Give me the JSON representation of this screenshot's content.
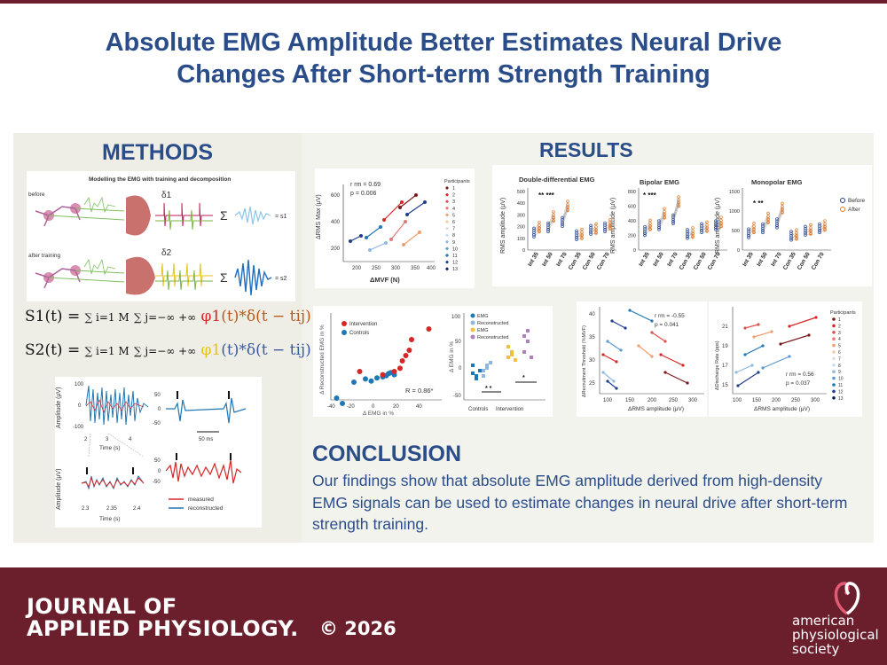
{
  "title": {
    "line1": "Absolute EMG Amplitude Better Estimates Neural Drive",
    "line2": "Changes After Short-term Strength Training"
  },
  "methods": {
    "heading": "METHODS",
    "model_title": "Modelling the EMG with training and decomposition",
    "label_before": "before",
    "label_after": "after training",
    "delta1": "δ1",
    "delta2": "δ2",
    "sum_symbol": "Σ",
    "s1": "= s1",
    "s2": "= s2",
    "eq1_lhs": "S1(t) = ",
    "eq1_sum1": "∑ i=1 M",
    "eq1_sum2": "∑ j=−∞ +∞",
    "eq1_phi": "φ1",
    "eq1_rest": "(t)*δ(t − tij)",
    "eq2_lhs": "S2(t) = ",
    "eq2_sum1": "∑ i=1 M",
    "eq2_sum2": "∑ j=−∞ +∞",
    "eq2_phi": "φ1",
    "eq2_rest": "(t)*δ(t − tij)",
    "trace_ylabel": "Amplitude (μV)",
    "trace_xlabel1": "Time (s)",
    "trace_xlabel2": "Time (s)",
    "trace_ticks_x1": [
      "2",
      "3",
      "4"
    ],
    "trace_ticks_x2": [
      "2.3",
      "2.35",
      "2.4"
    ],
    "trace_ticks_y": [
      "100",
      "0",
      "-100"
    ],
    "trace_ticks_y2": [
      "50",
      "0",
      "-50"
    ],
    "scale_bar": "50 ms",
    "legend_measured": "measured",
    "legend_reconstructed": "reconstructed"
  },
  "results": {
    "heading": "RESULTS",
    "scatter1": {
      "r": "r rm = 0.69",
      "p": "p = 0.006",
      "ylabel": "ΔRMS Max (μV)",
      "xlabel": "ΔMVF (N)",
      "xticks": [
        "200",
        "250",
        "300",
        "350",
        "400"
      ],
      "yticks": [
        "600",
        "400",
        "200"
      ],
      "legend_title": "Participants",
      "participants": [
        "1",
        "2",
        "3",
        "4",
        "5",
        "6",
        "7",
        "8",
        "9",
        "10",
        "11",
        "12",
        "13"
      ]
    },
    "bars": {
      "titles": [
        "Double-differential EMG",
        "Bipolar EMG",
        "Monopolar EMG"
      ],
      "ylabel": "RMS amplitude (μV)",
      "categories": [
        "Int 35",
        "Int 50",
        "Int 70",
        "Con 35",
        "Con 50",
        "Con 70"
      ],
      "yticks_a": [
        "500",
        "400",
        "300",
        "200",
        "100",
        "0"
      ],
      "yticks_b": [
        "800",
        "600",
        "400",
        "200",
        "0"
      ],
      "yticks_c": [
        "1500",
        "1000",
        "500",
        "0"
      ],
      "legend_before": "Before",
      "legend_after": "After",
      "sig_a": "** ***",
      "sig_b": "* ***",
      "sig_c": "* **"
    },
    "scatter2": {
      "ylabel": "Δ Reconstructed EMG in %",
      "xlabel": "Δ EMG in %",
      "legend_intervention": "Intervention",
      "legend_controls": "Controls",
      "r": "R = 0.86*",
      "xticks": [
        "-40",
        "-20",
        "0",
        "20",
        "40"
      ]
    },
    "dots": {
      "ylabel": "Δ EMG in %",
      "legend": [
        "EMG",
        "Reconstructed",
        "EMG",
        "Reconstructed"
      ],
      "xlabels": [
        "Controls",
        "Intervention"
      ],
      "yticks": [
        "100",
        "50",
        "0",
        "-50"
      ],
      "sig1": "* *",
      "sig2": "*"
    },
    "rt": {
      "r": "r rm = -0.55",
      "p": "p = 0.041",
      "ylabel": "ΔRecruitment Threshold (%MVF)",
      "xlabel": "ΔRMS amplitude (μV)",
      "xticks": [
        "100",
        "150",
        "200",
        "250",
        "300"
      ],
      "yticks": [
        "40",
        "35",
        "30",
        "25"
      ]
    },
    "dr": {
      "r": "r rm = 0.56",
      "p": "p = 0.037",
      "ylabel": "ΔDischarge Rate (pps)",
      "xlabel": "ΔRMS amplitude (μV)",
      "xticks": [
        "100",
        "150",
        "200",
        "250",
        "300"
      ],
      "yticks": [
        "21",
        "19",
        "17",
        "15"
      ],
      "legend_title": "Participants"
    }
  },
  "conclusion": {
    "heading": "CONCLUSION",
    "text": "Our findings show that absolute EMG amplitude derived from high-density EMG signals can be used to estimate changes in neural drive after short-term strength training."
  },
  "footer": {
    "journal_line1": "JOURNAL OF",
    "journal_line2": "APPLIED PHYSIOLOGY.",
    "copyright": "© 2026",
    "society_line1": "american",
    "society_line2": "physiological",
    "society_line3": "society"
  },
  "colors": {
    "maroon": "#6b1f2c",
    "heading_blue": "#2a4d8a",
    "panel_bg": "#f3f3ed",
    "red": "#d62728",
    "blue": "#1f77b4"
  }
}
